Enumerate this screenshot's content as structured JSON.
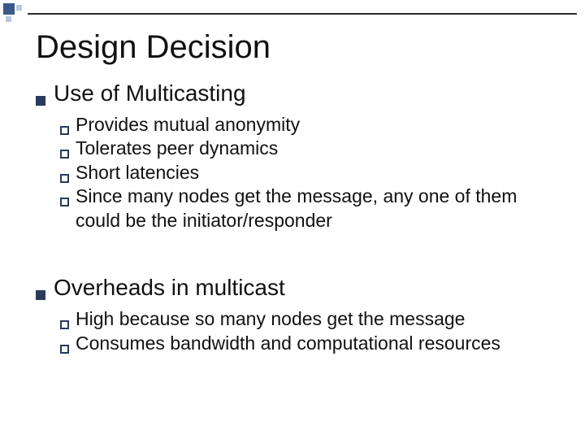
{
  "colors": {
    "bg": "#ffffff",
    "text": "#111111",
    "bullet_filled": "#2a3a5a",
    "bullet_outline": "#2a3a5a",
    "corner_dark": "#3a5a8a",
    "corner_light": "#b8c8dc",
    "rule": "#2a2a2a"
  },
  "typography": {
    "title_fontsize": 40,
    "lvl1_fontsize": 28,
    "lvl2_fontsize": 23,
    "font_family": "Arial"
  },
  "title": "Design Decision",
  "sections": [
    {
      "heading": "Use of Multicasting",
      "items": [
        "Provides mutual anonymity",
        "Tolerates peer dynamics",
        "Short latencies",
        "Since many nodes get the message, any one of them could be the initiator/responder"
      ]
    },
    {
      "heading": "Overheads in multicast",
      "items": [
        "High because so many nodes get the message",
        "Consumes bandwidth and computational resources"
      ]
    }
  ]
}
